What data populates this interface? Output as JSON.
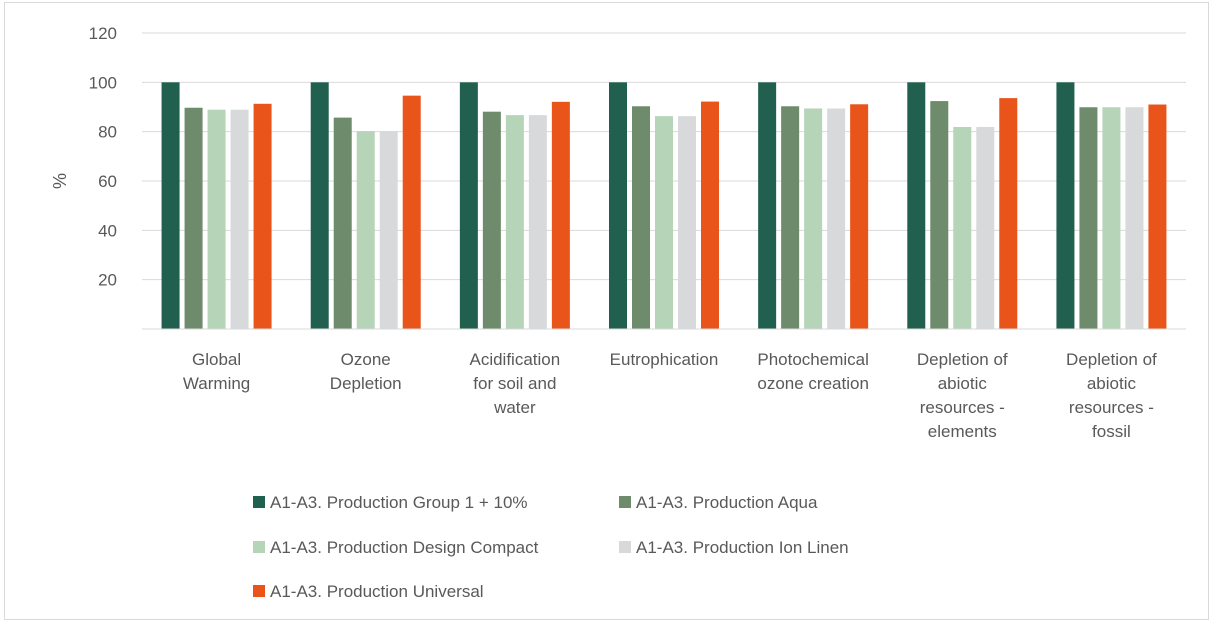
{
  "chart_data": {
    "type": "bar",
    "ylabel": "%",
    "ylim": [
      0,
      120
    ],
    "yticks": [
      "20",
      "40",
      "60",
      "80",
      "100",
      "120"
    ],
    "categories": [
      [
        "Global",
        "Warming"
      ],
      [
        "Ozone",
        "Depletion"
      ],
      [
        "Acidification",
        "for soil and",
        "water"
      ],
      [
        "Eutrophication"
      ],
      [
        "Photochemical",
        "ozone creation"
      ],
      [
        "Depletion of",
        "abiotic",
        "resources -",
        "elements"
      ],
      [
        "Depletion of",
        "abiotic",
        "resources -",
        "fossil"
      ]
    ],
    "series": [
      {
        "name": "A1-A3. Production Group 1 + 10%",
        "color": "#215f4f",
        "values": [
          100,
          100,
          100,
          100,
          100,
          100,
          100
        ]
      },
      {
        "name": "A1-A3. Production Aqua",
        "color": "#6e8b6b",
        "values": [
          89.7,
          85.7,
          88.1,
          90.3,
          90.3,
          92.4,
          89.9
        ]
      },
      {
        "name": "A1-A3. Production Design Compact",
        "color": "#b5d4b8",
        "values": [
          88.9,
          80.2,
          86.7,
          86.3,
          89.4,
          81.9,
          89.9
        ]
      },
      {
        "name": "A1-A3. Production Ion Linen",
        "color": "#d8d9db",
        "values": [
          88.9,
          80.2,
          86.7,
          86.3,
          89.4,
          81.9,
          89.9
        ]
      },
      {
        "name": "A1-A3. Production Universal",
        "color": "#e8541a",
        "values": [
          91.3,
          94.6,
          92.1,
          92.2,
          91.1,
          93.6,
          91.0
        ]
      }
    ],
    "grid": true,
    "legend_position": "bottom"
  }
}
